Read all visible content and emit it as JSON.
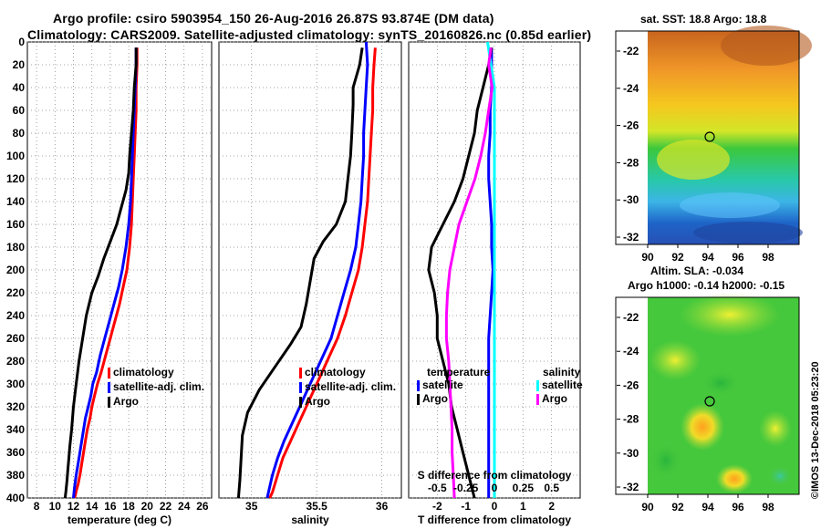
{
  "header": {
    "title_line1": "Argo profile: csiro 5903954_150 26-Aug-2016 26.87S 93.874E (DM data)",
    "title_line2": "Climatology: CARS2009. Satellite-adjusted climatology: synTS_20160826.nc (0.85d earlier)"
  },
  "map_top": {
    "title": "sat. SST: 18.8 Argo: 18.8",
    "lon_ticks": [
      "90",
      "92",
      "94",
      "96",
      "98"
    ],
    "lat_ticks": [
      "-22",
      "-24",
      "-26",
      "-28",
      "-30",
      "-32"
    ]
  },
  "map_bottom": {
    "title_line1": "Altim. SLA: -0.034",
    "title_line2": "Argo h1000: -0.14 h2000: -0.15",
    "lon_ticks": [
      "90",
      "92",
      "94",
      "96",
      "98"
    ],
    "lat_ticks": [
      "-22",
      "-24",
      "-26",
      "-28",
      "-30",
      "-32"
    ]
  },
  "credit": "©IMOS 13-Dec-2018 05:23:20",
  "colors": {
    "climatology": "#ff0000",
    "satellite": "#0000ff",
    "argo": "#000000",
    "sal_satellite": "#00ffff",
    "sal_argo": "#ff00ff"
  },
  "chart_data": [
    {
      "type": "line",
      "name": "temperature",
      "xlabel": "temperature (deg C)",
      "ylabel": "",
      "xlim": [
        7,
        27
      ],
      "ylim": [
        400,
        0
      ],
      "xticks": [
        8,
        10,
        12,
        14,
        16,
        18,
        20,
        22,
        24,
        26
      ],
      "yticks": [
        0,
        20,
        40,
        60,
        80,
        100,
        120,
        140,
        160,
        180,
        200,
        220,
        240,
        260,
        280,
        300,
        320,
        340,
        360,
        380,
        400
      ],
      "grid": true,
      "legend": [
        "climatology",
        "satellite-adj. clim.",
        "Argo"
      ],
      "series": [
        {
          "name": "climatology",
          "color_key": "climatology",
          "x": [
            18.9,
            18.9,
            18.8,
            18.8,
            18.7,
            18.6,
            18.5,
            18.4,
            18.3,
            18.1,
            17.8,
            17.4,
            17.0,
            16.5,
            16.0,
            15.5,
            15.0,
            14.6,
            14.3,
            14.0,
            13.8,
            13.5,
            13.3,
            13.1,
            12.9,
            12.7,
            12.5,
            12.3,
            12.2,
            12.1
          ],
          "y": [
            5,
            20,
            40,
            60,
            80,
            100,
            120,
            140,
            160,
            180,
            200,
            215,
            230,
            245,
            260,
            275,
            290,
            300,
            310,
            320,
            330,
            340,
            350,
            360,
            370,
            380,
            388,
            394,
            398,
            400
          ]
        },
        {
          "name": "satellite-adj. clim.",
          "color_key": "satellite",
          "x": [
            18.8,
            18.8,
            18.7,
            18.6,
            18.5,
            18.4,
            18.3,
            18.2,
            18.0,
            17.7,
            17.3,
            16.9,
            16.4,
            15.9,
            15.4,
            14.9,
            14.5,
            14.1,
            13.9,
            13.6,
            13.3,
            13.1,
            12.9,
            12.7,
            12.5,
            12.3,
            12.1,
            12.0
          ],
          "y": [
            5,
            20,
            40,
            60,
            80,
            100,
            120,
            140,
            160,
            180,
            200,
            215,
            230,
            245,
            260,
            275,
            290,
            300,
            310,
            320,
            330,
            340,
            350,
            360,
            370,
            380,
            392,
            400
          ]
        },
        {
          "name": "Argo",
          "color_key": "argo",
          "x": [
            18.8,
            18.8,
            18.6,
            18.5,
            18.3,
            18.1,
            18.0,
            17.7,
            17.2,
            16.7,
            16.0,
            15.3,
            14.7,
            14.0,
            13.4,
            13.0,
            12.6,
            12.3,
            12.0,
            11.8,
            11.6,
            11.5,
            11.4,
            11.3,
            11.2,
            11.1
          ],
          "y": [
            5,
            20,
            40,
            60,
            80,
            100,
            115,
            130,
            145,
            160,
            175,
            190,
            205,
            220,
            240,
            260,
            280,
            300,
            320,
            340,
            355,
            365,
            375,
            385,
            393,
            400
          ]
        }
      ]
    },
    {
      "type": "line",
      "name": "salinity",
      "xlabel": "salinity",
      "ylabel": "",
      "xlim": [
        34.75,
        36.15
      ],
      "ylim": [
        400,
        0
      ],
      "xticks": [
        35,
        35.5,
        36
      ],
      "xticklabels": [
        "35",
        "35.5",
        "36"
      ],
      "grid": true,
      "legend": [
        "climatology",
        "satellite-adj. clim.",
        "Argo"
      ],
      "series": [
        {
          "name": "climatology",
          "color_key": "climatology",
          "x": [
            35.95,
            35.94,
            35.93,
            35.93,
            35.92,
            35.91,
            35.9,
            35.89,
            35.87,
            35.85,
            35.82,
            35.77,
            35.72,
            35.66,
            35.6,
            35.54,
            35.48,
            35.42,
            35.36,
            35.3,
            35.24,
            35.2,
            35.16,
            35.14
          ],
          "y": [
            5,
            20,
            40,
            60,
            80,
            100,
            120,
            140,
            160,
            180,
            200,
            220,
            240,
            260,
            275,
            290,
            305,
            320,
            335,
            350,
            365,
            380,
            395,
            400
          ]
        },
        {
          "name": "satellite-adj. clim.",
          "color_key": "satellite",
          "x": [
            35.88,
            35.89,
            35.88,
            35.87,
            35.86,
            35.86,
            35.85,
            35.84,
            35.82,
            35.8,
            35.76,
            35.71,
            35.66,
            35.61,
            35.55,
            35.49,
            35.43,
            35.37,
            35.31,
            35.25,
            35.2,
            35.16,
            35.13,
            35.12
          ],
          "y": [
            0,
            20,
            40,
            60,
            80,
            100,
            120,
            140,
            160,
            180,
            200,
            220,
            240,
            260,
            275,
            290,
            305,
            320,
            335,
            350,
            365,
            380,
            395,
            400
          ]
        },
        {
          "name": "Argo",
          "color_key": "argo",
          "x": [
            35.85,
            35.83,
            35.78,
            35.78,
            35.77,
            35.76,
            35.74,
            35.72,
            35.65,
            35.55,
            35.48,
            35.45,
            35.42,
            35.38,
            35.3,
            35.18,
            35.06,
            34.97,
            34.93,
            34.92,
            34.91,
            34.9
          ],
          "y": [
            5,
            20,
            40,
            55,
            80,
            100,
            120,
            140,
            160,
            175,
            190,
            210,
            230,
            250,
            265,
            285,
            305,
            325,
            345,
            365,
            385,
            400
          ]
        }
      ]
    },
    {
      "type": "line",
      "name": "difference",
      "xlabel": "T difference from climatology",
      "xlabel_top": "S difference from climatology",
      "xlim": [
        -3,
        3
      ],
      "xlim_top": [
        -0.75,
        0.75
      ],
      "ylim": [
        400,
        0
      ],
      "xticks": [
        -2,
        -1,
        0,
        1,
        2
      ],
      "xticklabels": [
        "-2",
        "-1",
        "0",
        "1",
        "2"
      ],
      "xticks_top": [
        -0.5,
        -0.25,
        0,
        0.25,
        0.5
      ],
      "xticklabels_top": [
        "-0.5",
        "-0.25",
        "0",
        "0.25",
        "0.5"
      ],
      "grid": true,
      "legend_temperature_title": "temperature",
      "legend_salinity_title": "salinity",
      "legend_temperature": [
        "satellite",
        "Argo"
      ],
      "legend_salinity": [
        "satellite",
        "Argo"
      ],
      "series": [
        {
          "name": "temperature satellite",
          "color_key": "satellite",
          "axis": "T",
          "x": [
            -0.1,
            -0.1,
            -0.1,
            -0.15,
            -0.15,
            -0.2,
            -0.2,
            -0.15,
            -0.1,
            -0.1,
            -0.05,
            -0.1,
            -0.15,
            -0.2,
            -0.2,
            -0.2,
            -0.2,
            -0.2,
            -0.2,
            -0.2,
            -0.2
          ],
          "y": [
            5,
            20,
            40,
            60,
            80,
            100,
            120,
            140,
            160,
            180,
            200,
            220,
            240,
            260,
            280,
            300,
            320,
            340,
            360,
            380,
            400
          ]
        },
        {
          "name": "temperature Argo",
          "color_key": "argo",
          "axis": "T",
          "x": [
            -0.1,
            -0.2,
            -0.4,
            -0.6,
            -0.7,
            -0.9,
            -1.1,
            -1.4,
            -1.8,
            -2.2,
            -2.3,
            -2.1,
            -2.0,
            -2.0,
            -1.8,
            -1.6,
            -1.5,
            -1.3,
            -1.1,
            -0.9,
            -0.7
          ],
          "y": [
            5,
            20,
            40,
            60,
            80,
            100,
            120,
            140,
            160,
            180,
            200,
            220,
            240,
            260,
            280,
            300,
            320,
            340,
            360,
            380,
            400
          ]
        },
        {
          "name": "salinity satellite",
          "color_key": "sal_satellite",
          "axis": "S",
          "x": [
            -0.06,
            -0.03,
            0.0,
            0.0,
            0.0,
            0.0,
            0.0,
            0.0,
            0.0,
            0.0,
            0.0,
            0.0,
            0.0,
            0.0,
            0.0,
            0.0,
            0.0,
            0.0,
            0.0,
            0.0,
            0.0
          ],
          "y": [
            0,
            20,
            40,
            60,
            80,
            100,
            120,
            140,
            160,
            180,
            200,
            220,
            240,
            260,
            280,
            300,
            320,
            340,
            360,
            380,
            400
          ]
        },
        {
          "name": "salinity Argo",
          "color_key": "sal_argo",
          "axis": "S",
          "x": [
            -0.03,
            -0.05,
            -0.02,
            -0.05,
            -0.08,
            -0.12,
            -0.17,
            -0.24,
            -0.31,
            -0.35,
            -0.39,
            -0.41,
            -0.42,
            -0.42,
            -0.4,
            -0.39,
            -0.38,
            -0.37,
            -0.37,
            -0.36,
            -0.35
          ],
          "y": [
            5,
            20,
            40,
            60,
            80,
            100,
            120,
            140,
            160,
            180,
            200,
            220,
            240,
            260,
            280,
            300,
            320,
            340,
            360,
            380,
            400
          ]
        }
      ]
    }
  ]
}
